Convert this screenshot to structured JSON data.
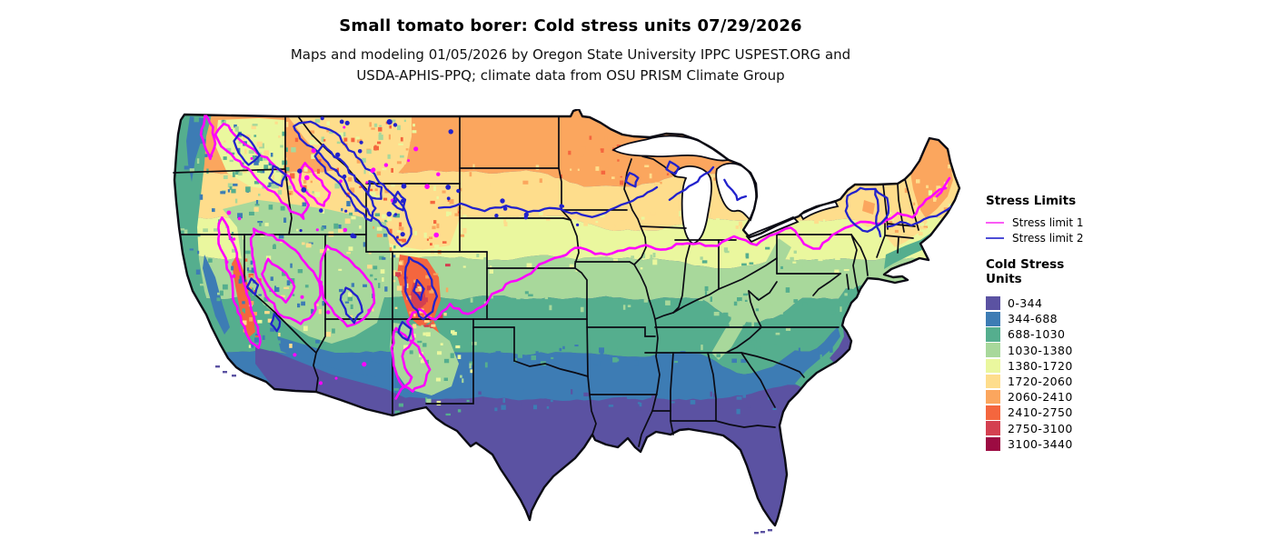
{
  "title": "Small tomato borer: Cold stress units 07/29/2026",
  "subtitle_line1": "Maps and modeling 01/05/2026 by Oregon State University IPPC USPEST.ORG and",
  "subtitle_line2": "USDA-APHIS-PPQ; climate data from OSU PRISM Climate Group",
  "legend": {
    "stress_limits_heading": "Stress Limits",
    "stress_limits": [
      {
        "label": "Stress limit 1",
        "color": "#ff00ff",
        "legend_color": "#fb5cf5"
      },
      {
        "label": "Stress limit 2",
        "color": "#2222cc",
        "legend_color": "#4d4dd6"
      }
    ],
    "units_heading_line1": "Cold Stress",
    "units_heading_line2": "Units",
    "classes": [
      {
        "label": "0-344",
        "color": "#5b52a2"
      },
      {
        "label": "344-688",
        "color": "#3d7cb4"
      },
      {
        "label": "688-1030",
        "color": "#55ae8e"
      },
      {
        "label": "1030-1380",
        "color": "#a8d89b"
      },
      {
        "label": "1380-1720",
        "color": "#eaf79e"
      },
      {
        "label": "1720-2060",
        "color": "#fedd8c"
      },
      {
        "label": "2060-2410",
        "color": "#fba65e"
      },
      {
        "label": "2410-2750",
        "color": "#f4663e"
      },
      {
        "label": "2750-3100",
        "color": "#d44050"
      },
      {
        "label": "3100-3440",
        "color": "#9c0b42"
      }
    ]
  }
}
